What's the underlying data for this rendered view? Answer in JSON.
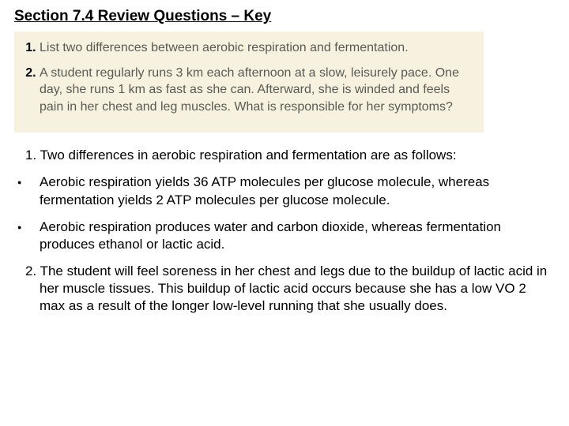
{
  "title": "Section 7.4 Review Questions – Key",
  "questionBox": {
    "background": "#f7f2e0",
    "textColor": "#5a5a53",
    "items": [
      "List two differences between aerobic respiration and fermentation.",
      "A student regularly runs 3 km each afternoon at a slow, leisurely pace. One day, she runs 1 km as fast as she can. Afterward, she is winded and feels pain in her chest and leg muscles. What is responsible for her symptoms?"
    ]
  },
  "answers": {
    "a1_intro": "1. Two differences in aerobic respiration and fermentation are as follows:",
    "a1_bullets": [
      "Aerobic respiration yields 36 ATP molecules per glucose molecule, whereas fermentation yields 2 ATP molecules per glucose molecule.",
      "Aerobic respiration produces water and carbon dioxide, whereas fermentation produces ethanol or lactic acid."
    ],
    "a2": "2. The student will feel soreness in her chest and legs due to the buildup of lactic acid in her muscle tissues. This buildup of lactic acid occurs because she has a low VO 2 max as a result of the longer low-level running that she usually does."
  }
}
